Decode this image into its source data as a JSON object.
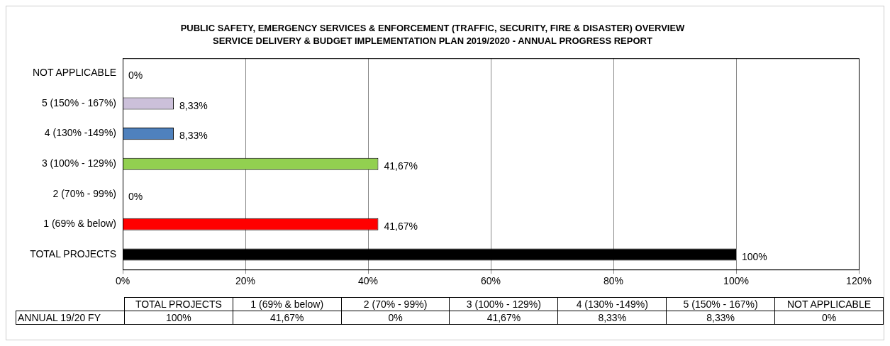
{
  "chart_data": {
    "type": "bar",
    "orientation": "horizontal",
    "title": "PUBLIC SAFETY, EMERGENCY SERVICES & ENFORCEMENT (TRAFFIC, SECURITY, FIRE & DISASTER) OVERVIEW",
    "subtitle": "SERVICE DELIVERY & BUDGET IMPLEMENTATION PLAN 2019/2020 - ANNUAL PROGRESS REPORT",
    "categories": [
      "NOT APPLICABLE",
      "5 (150% - 167%)",
      "4 (130% -149%)",
      "3 (100% - 129%)",
      "2 (70% - 99%)",
      "1 (69% & below)",
      "TOTAL PROJECTS"
    ],
    "colors": [
      "#ffffff",
      "#ccc0da",
      "#4f81bd",
      "#92d050",
      "#ffffff",
      "#ff0000",
      "#000000"
    ],
    "series": [
      {
        "name": "ANNUAL 19/20 FY",
        "values": [
          0,
          8.33,
          8.33,
          41.67,
          0,
          41.67,
          100
        ],
        "value_labels": [
          "0%",
          "8,33%",
          "8,33%",
          "41,67%",
          "0%",
          "41,67%",
          "100%"
        ]
      }
    ],
    "xlim": [
      0,
      120
    ],
    "xticks": [
      {
        "value": 0,
        "label": "0%"
      },
      {
        "value": 20,
        "label": "20%"
      },
      {
        "value": 40,
        "label": "40%"
      },
      {
        "value": 60,
        "label": "60%"
      },
      {
        "value": 80,
        "label": "80%"
      },
      {
        "value": 100,
        "label": "100%"
      },
      {
        "value": 120,
        "label": "120%"
      }
    ],
    "grid": "x",
    "legend": false
  }
}
